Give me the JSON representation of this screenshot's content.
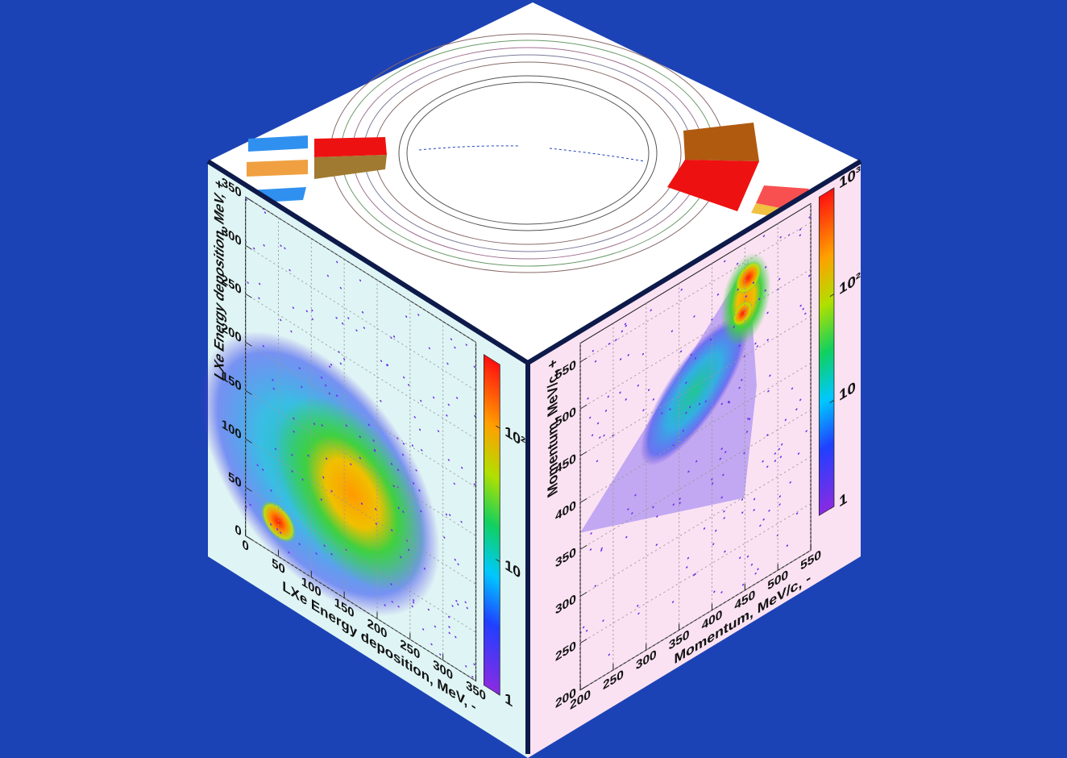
{
  "chart_data": [
    {
      "type": "heatmap",
      "xlabel": "LXe Energy deposition, MeV, -",
      "ylabel": "LXe Energy deposition, MeV, +",
      "xlim": [
        0,
        350
      ],
      "ylim": [
        0,
        350
      ],
      "xticks": [
        0,
        50,
        100,
        150,
        200,
        250,
        300,
        350
      ],
      "yticks": [
        0,
        50,
        100,
        150,
        200,
        250,
        300,
        350
      ],
      "grid": true,
      "colorbar": {
        "log": true,
        "lim": [
          1,
          300
        ],
        "ticks": [
          1,
          10,
          {
            "value": 100,
            "label": "10²"
          }
        ]
      }
    },
    {
      "type": "heatmap",
      "xlabel": "Momentum, MeV/c, -",
      "ylabel": "Momentum, MeV/c, +",
      "xlim": [
        200,
        550
      ],
      "ylim": [
        200,
        570
      ],
      "xticks": [
        200,
        250,
        300,
        350,
        400,
        450,
        500,
        550
      ],
      "yticks": [
        200,
        250,
        300,
        350,
        400,
        450,
        500,
        550
      ],
      "grid": true,
      "colorbar": {
        "log": true,
        "lim": [
          1,
          1000
        ],
        "ticks": [
          1,
          10,
          {
            "value": 100,
            "label": "10²"
          },
          {
            "value": 1000,
            "label": "10³"
          }
        ]
      }
    }
  ]
}
